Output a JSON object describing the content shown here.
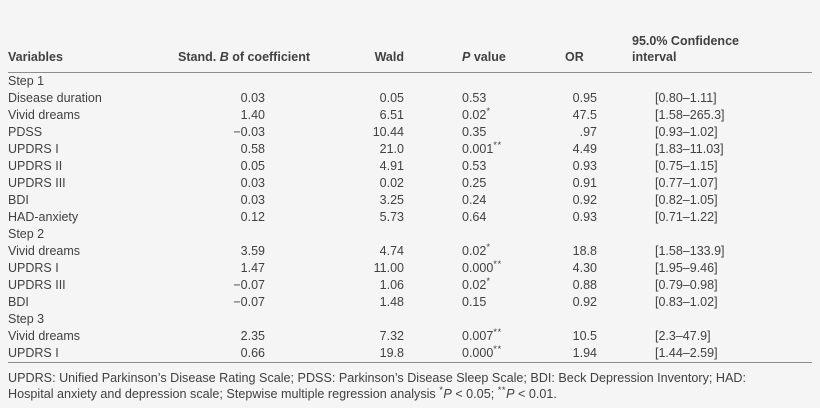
{
  "table": {
    "header": {
      "variables": "Variables",
      "stand_b_prefix": "Stand. ",
      "stand_b_italic": "B",
      "stand_b_suffix": " of coefficient",
      "wald": "Wald",
      "p_italic": "P",
      "p_suffix": " value",
      "or": "OR",
      "ci_line1": "95.0% Confidence",
      "ci_line2": "interval"
    },
    "rows": [
      {
        "section": "Step 1"
      },
      {
        "variable": "Disease duration",
        "b": "0.03",
        "wald": "0.05",
        "p": "0.53",
        "p_sup": "",
        "or": "0.95",
        "ci": "[0.80–1.11]"
      },
      {
        "variable": "Vivid dreams",
        "b": "1.40",
        "wald": "6.51",
        "p": "0.02",
        "p_sup": "*",
        "or": "47.5",
        "ci": "[1.58–265.3]"
      },
      {
        "variable": "PDSS",
        "b": "−0.03",
        "wald": "10.44",
        "p": "0.35",
        "p_sup": "",
        "or": ".97",
        "ci": "[0.93–1.02]"
      },
      {
        "variable": "UPDRS I",
        "b": "0.58",
        "wald": "21.0",
        "p": "0.001",
        "p_sup": "**",
        "or": "4.49",
        "ci": "[1.83–11.03]"
      },
      {
        "variable": "UPDRS II",
        "b": "0.05",
        "wald": "4.91",
        "p": "0.53",
        "p_sup": "",
        "or": "0.93",
        "ci": "[0.75–1.15]"
      },
      {
        "variable": "UPDRS III",
        "b": "0.03",
        "wald": "0.02",
        "p": "0.25",
        "p_sup": "",
        "or": "0.91",
        "ci": "[0.77–1.07]"
      },
      {
        "variable": "BDI",
        "b": "0.03",
        "wald": "3.25",
        "p": "0.24",
        "p_sup": "",
        "or": "0.92",
        "ci": "[0.82–1.05]"
      },
      {
        "variable": "HAD-anxiety",
        "b": "0.12",
        "wald": "5.73",
        "p": "0.64",
        "p_sup": "",
        "or": "0.93",
        "ci": "[0.71–1.22]"
      },
      {
        "section": "Step 2"
      },
      {
        "variable": "Vivid dreams",
        "b": "3.59",
        "wald": "4.74",
        "p": "0.02",
        "p_sup": "*",
        "or": "18.8",
        "ci": "[1.58–133.9]"
      },
      {
        "variable": "UPDRS I",
        "b": "1.47",
        "wald": "11.00",
        "p": "0.000",
        "p_sup": "**",
        "or": "4.30",
        "ci": "[1.95–9.46]"
      },
      {
        "variable": "UPDRS III",
        "b": "−0.07",
        "wald": "1.06",
        "p": "0.02",
        "p_sup": "*",
        "or": "0.88",
        "ci": "[0.79–0.98]"
      },
      {
        "variable": "BDI",
        "b": "−0.07",
        "wald": "1.48",
        "p": "0.15",
        "p_sup": "",
        "or": "0.92",
        "ci": "[0.83–1.02]"
      },
      {
        "section": "Step 3"
      },
      {
        "variable": "Vivid dreams",
        "b": "2.35",
        "wald": "7.32",
        "p": "0.007",
        "p_sup": "**",
        "or": "10.5",
        "ci": "[2.3–47.9]"
      },
      {
        "variable": "UPDRS I",
        "b": "0.66",
        "wald": "19.8",
        "p": "0.000",
        "p_sup": "**",
        "or": "1.94",
        "ci": "[1.44–2.59]"
      }
    ]
  },
  "footnote": {
    "line1": "UPDRS: Unified Parkinson’s Disease Rating Scale; PDSS: Parkinson’s Disease Sleep Scale; BDI: Beck Depression Inventory; HAD:",
    "line2_prefix": "Hospital anxiety and depression scale; Stepwise multiple regression analysis ",
    "sig1_sup": "*",
    "sig1_p": "P",
    "sig1_rest": " < 0.05; ",
    "sig2_sup": "**",
    "sig2_p": "P",
    "sig2_rest": " < 0.01."
  }
}
